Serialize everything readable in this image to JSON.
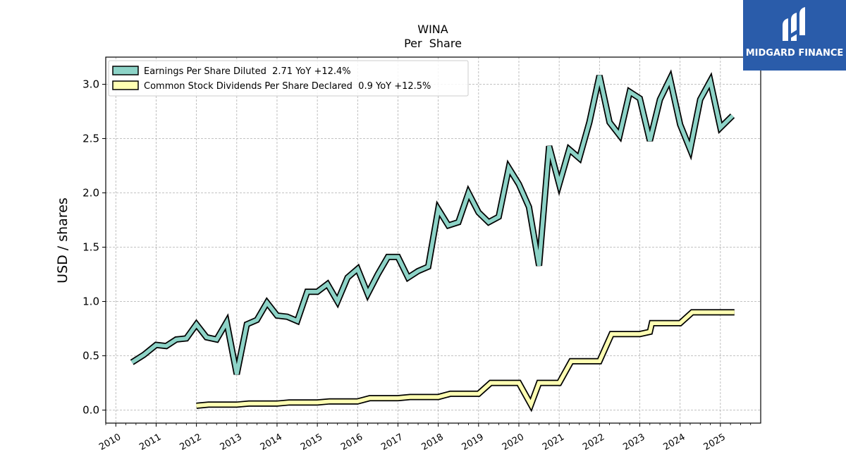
{
  "logo": {
    "text": "MIDGARD FINANCE",
    "icon": "midgard-logo-icon",
    "background": "#2a5caa"
  },
  "chart_data": {
    "type": "line",
    "title": "WINA",
    "subtitle": "Per  Share",
    "xlabel": "",
    "ylabel": "USD / shares",
    "xlim": [
      2009.75,
      2026.0
    ],
    "ylim": [
      -0.12,
      3.25
    ],
    "x_ticks": [
      "2010",
      "2011",
      "2012",
      "2013",
      "2014",
      "2015",
      "2016",
      "2017",
      "2018",
      "2019",
      "2020",
      "2021",
      "2022",
      "2023",
      "2024",
      "2025"
    ],
    "y_ticks": [
      "0.0",
      "0.5",
      "1.0",
      "1.5",
      "2.0",
      "2.5",
      "3.0"
    ],
    "grid": true,
    "legend_position": "top-left",
    "series": [
      {
        "name": "Earnings Per Share Diluted",
        "legend_label": "Earnings Per Share Diluted  2.71 YoY +12.4%",
        "color": "#8dd3c7",
        "x": [
          2010.4,
          2010.7,
          2011.0,
          2011.25,
          2011.5,
          2011.75,
          2012.0,
          2012.25,
          2012.5,
          2012.75,
          2013.0,
          2013.25,
          2013.5,
          2013.75,
          2014.0,
          2014.25,
          2014.5,
          2014.75,
          2015.0,
          2015.25,
          2015.5,
          2015.75,
          2016.0,
          2016.25,
          2016.5,
          2016.75,
          2017.0,
          2017.25,
          2017.5,
          2017.75,
          2018.0,
          2018.25,
          2018.5,
          2018.75,
          2019.0,
          2019.25,
          2019.5,
          2019.75,
          2020.0,
          2020.25,
          2020.5,
          2020.75,
          2021.0,
          2021.25,
          2021.5,
          2021.75,
          2022.0,
          2022.25,
          2022.5,
          2022.75,
          2023.0,
          2023.25,
          2023.5,
          2023.75,
          2024.0,
          2024.25,
          2024.5,
          2024.75,
          2025.0,
          2025.3
        ],
        "values": [
          0.44,
          0.51,
          0.6,
          0.59,
          0.65,
          0.66,
          0.79,
          0.67,
          0.65,
          0.81,
          0.33,
          0.79,
          0.83,
          0.99,
          0.87,
          0.86,
          0.82,
          1.09,
          1.09,
          1.16,
          1.0,
          1.22,
          1.3,
          1.07,
          1.25,
          1.41,
          1.41,
          1.22,
          1.28,
          1.32,
          1.85,
          1.7,
          1.73,
          2.0,
          1.82,
          1.73,
          1.78,
          2.23,
          2.08,
          1.87,
          1.33,
          2.43,
          2.08,
          2.4,
          2.32,
          2.65,
          3.08,
          2.65,
          2.53,
          2.93,
          2.87,
          2.48,
          2.86,
          3.05,
          2.63,
          2.4,
          2.86,
          3.03,
          2.6,
          2.71
        ]
      },
      {
        "name": "Common Stock Dividends Per Share Declared",
        "legend_label": "Common Stock Dividends Per Share Declared  0.9 YoY +12.5%",
        "color": "#ffffb3",
        "x": [
          2012.0,
          2012.3,
          2013.0,
          2013.3,
          2014.0,
          2014.3,
          2015.0,
          2015.3,
          2016.0,
          2016.3,
          2017.0,
          2017.3,
          2018.0,
          2018.3,
          2019.0,
          2019.3,
          2020.0,
          2020.3,
          2020.5,
          2021.0,
          2021.3,
          2022.0,
          2022.3,
          2023.0,
          2023.25,
          2023.3,
          2024.0,
          2024.3,
          2025.0,
          2025.35
        ],
        "values": [
          0.04,
          0.05,
          0.05,
          0.06,
          0.06,
          0.07,
          0.07,
          0.08,
          0.08,
          0.11,
          0.11,
          0.12,
          0.12,
          0.15,
          0.15,
          0.25,
          0.25,
          0.05,
          0.25,
          0.25,
          0.45,
          0.45,
          0.7,
          0.7,
          0.72,
          0.8,
          0.8,
          0.9,
          0.9,
          0.9
        ]
      }
    ]
  }
}
